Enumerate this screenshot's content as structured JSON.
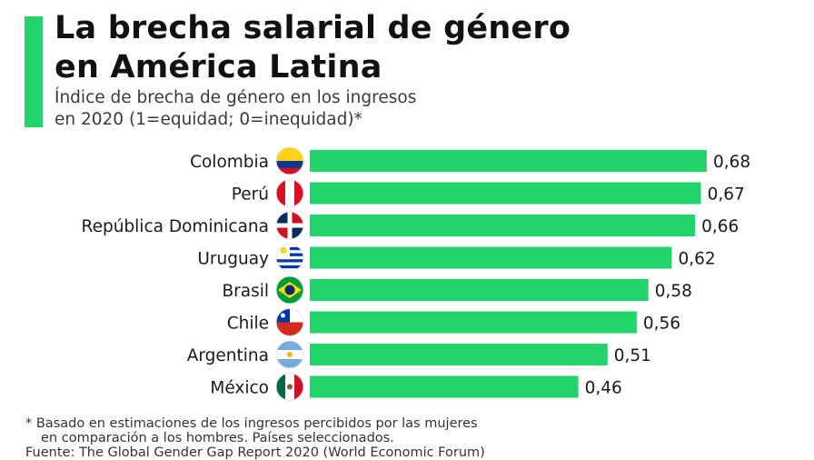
{
  "header": {
    "title_line1": "La brecha salarial de género",
    "title_line2": "en América Latina",
    "subtitle_line1": "Índice de brecha de género en los ingresos",
    "subtitle_line2": "en 2020 (1=equidad; 0=inequidad)*"
  },
  "colors": {
    "accent": "#22d469",
    "bar": "#22d469"
  },
  "chart_data": {
    "type": "bar",
    "orientation": "horizontal",
    "categories": [
      "Colombia",
      "Perú",
      "República Dominicana",
      "Uruguay",
      "Brasil",
      "Chile",
      "Argentina",
      "México"
    ],
    "values": [
      0.68,
      0.67,
      0.66,
      0.62,
      0.58,
      0.56,
      0.51,
      0.46
    ],
    "value_labels": [
      "0,68",
      "0,67",
      "0,66",
      "0,62",
      "0,58",
      "0,56",
      "0,51",
      "0,46"
    ],
    "flag_icons": [
      "colombia-flag-icon",
      "peru-flag-icon",
      "dominican-republic-flag-icon",
      "uruguay-flag-icon",
      "brazil-flag-icon",
      "chile-flag-icon",
      "argentina-flag-icon",
      "mexico-flag-icon"
    ],
    "title": "",
    "xlabel": "",
    "ylabel": "",
    "xlim": [
      0,
      0.68
    ],
    "grid": false,
    "legend": "none"
  },
  "footer": {
    "note_line1": "* Basado en estimaciones de los ingresos percibidos por las mujeres",
    "note_line2": "en comparación a los hombres. Países seleccionados.",
    "source": "Fuente: The Global Gender Gap Report 2020 (World Economic Forum)"
  }
}
